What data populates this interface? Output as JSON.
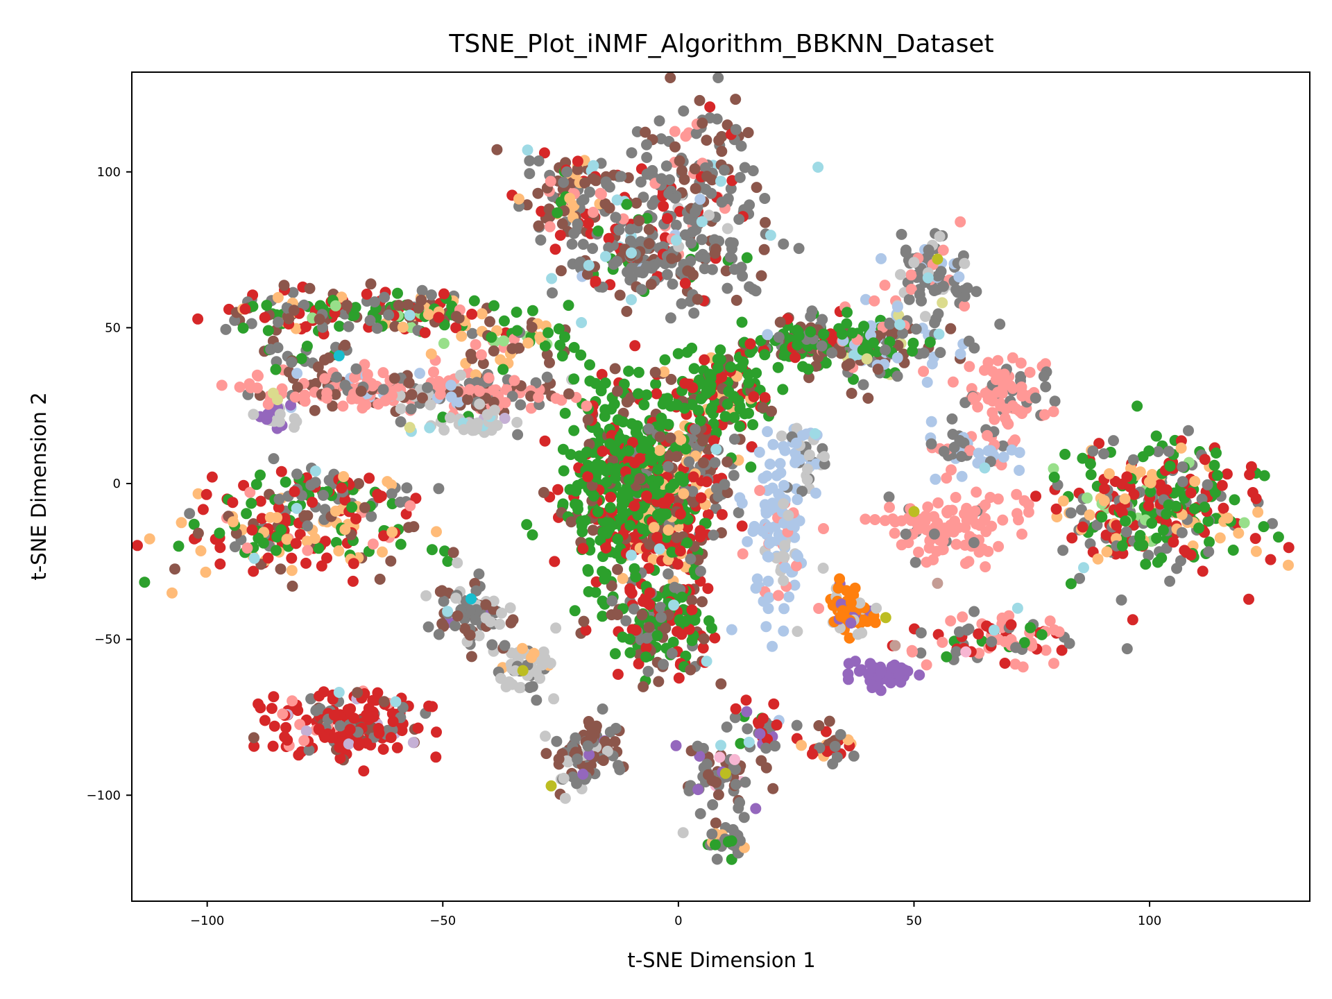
{
  "chart_data": {
    "type": "scatter",
    "title": "TSNE_Plot_iNMF_Algorithm_BBKNN_Dataset",
    "xlabel": "t-SNE Dimension 1",
    "ylabel": "t-SNE Dimension 2",
    "xlim": [
      -116,
      134
    ],
    "ylim": [
      -134,
      132
    ],
    "xticks": [
      {
        "value": -100,
        "label": "−100"
      },
      {
        "value": -50,
        "label": "−50"
      },
      {
        "value": 0,
        "label": "0"
      },
      {
        "value": 50,
        "label": "50"
      },
      {
        "value": 100,
        "label": "100"
      }
    ],
    "yticks": [
      {
        "value": -100,
        "label": "−100"
      },
      {
        "value": -50,
        "label": "−50"
      },
      {
        "value": 0,
        "label": "0"
      },
      {
        "value": 50,
        "label": "50"
      },
      {
        "value": 100,
        "label": "100"
      }
    ],
    "grid": false,
    "legend": "none",
    "colors": {
      "blue": "#1f77b4",
      "lightblue": "#aec7e8",
      "orange": "#ff7f0e",
      "lightorange": "#ffbb78",
      "green": "#2ca02c",
      "lightgreen": "#98df8a",
      "red": "#d62728",
      "pink": "#ff9896",
      "purple": "#9467bd",
      "lavender": "#c5b0d5",
      "brown": "#8c564b",
      "tan": "#c49c94",
      "magenta": "#e377c2",
      "lightmagenta": "#f7b6d2",
      "gray": "#7f7f7f",
      "lightgray": "#c7c7c7",
      "olive": "#bcbd22",
      "khaki": "#dbdb8d",
      "cyan": "#17becf",
      "lightcyan": "#9edae5"
    },
    "clusters": [
      {
        "cx": -21,
        "cy": 93,
        "sx": 7,
        "sy": 7,
        "n": 110,
        "mix": {
          "lightorange": 2,
          "red": 3,
          "brown": 4,
          "gray": 4,
          "pink": 2,
          "green": 1,
          "lightcyan": 0.3
        }
      },
      {
        "cx": 4,
        "cy": 95,
        "sx": 7,
        "sy": 13,
        "n": 150,
        "mix": {
          "gray": 7,
          "brown": 3,
          "red": 1,
          "pink": 1,
          "lightcyan": 0.4,
          "lightgray": 0.4
        }
      },
      {
        "cx": -6,
        "cy": 72,
        "sx": 10,
        "sy": 8,
        "n": 180,
        "mix": {
          "gray": 6,
          "brown": 3,
          "green": 1,
          "red": 1,
          "lightblue": 0.6,
          "lightcyan": 0.4
        }
      },
      {
        "cx": -80,
        "cy": 55,
        "sx": 9,
        "sy": 3.5,
        "n": 90,
        "mix": {
          "red": 3,
          "green": 3,
          "gray": 3,
          "brown": 3,
          "lightorange": 1.5
        }
      },
      {
        "cx": -55,
        "cy": 54,
        "sx": 10,
        "sy": 3.5,
        "n": 100,
        "mix": {
          "red": 2,
          "green": 3,
          "brown": 3,
          "lightorange": 2,
          "gray": 1,
          "lightgreen": 0.5
        }
      },
      {
        "cx": -35,
        "cy": 45,
        "sx": 7,
        "sy": 4,
        "n": 50,
        "mix": {
          "lightorange": 3,
          "green": 2,
          "brown": 2,
          "pink": 1,
          "lightgreen": 0.5
        }
      },
      {
        "cx": -65,
        "cy": 30,
        "sx": 13,
        "sy": 3.5,
        "n": 150,
        "mix": {
          "pink": 6,
          "brown": 2,
          "lightblue": 1,
          "gray": 1.5
        }
      },
      {
        "cx": -40,
        "cy": 29,
        "sx": 10,
        "sy": 3,
        "n": 100,
        "mix": {
          "pink": 6,
          "brown": 2,
          "gray": 1.5,
          "lightgray": 1,
          "lightblue": 1
        }
      },
      {
        "cx": -44,
        "cy": 19,
        "sx": 6,
        "sy": 1.5,
        "n": 40,
        "mix": {
          "lightgray": 4,
          "gray": 1,
          "lavender": 1,
          "green": 0.5,
          "lightcyan": 0.5
        }
      },
      {
        "cx": -85,
        "cy": 22,
        "sx": 2,
        "sy": 3,
        "n": 20,
        "mix": {
          "purple": 2,
          "lightgray": 3,
          "khaki": 0.5
        }
      },
      {
        "cx": -80,
        "cy": 42,
        "sx": 5,
        "sy": 3,
        "n": 25,
        "mix": {
          "gray": 3,
          "brown": 2,
          "green": 1
        }
      },
      {
        "cx": -80,
        "cy": -15,
        "sx": 13,
        "sy": 8,
        "n": 180,
        "mix": {
          "red": 4,
          "green": 3,
          "lightorange": 3,
          "brown": 2,
          "gray": 1,
          "pink": 1
        }
      },
      {
        "cx": -71,
        "cy": -3,
        "sx": 9,
        "sy": 4,
        "n": 60,
        "mix": {
          "gray": 3,
          "red": 2,
          "green": 2,
          "lightorange": 1
        }
      },
      {
        "cx": -12,
        "cy": 2,
        "sx": 7,
        "sy": 17,
        "n": 460,
        "mix": {
          "green": 8,
          "red": 3,
          "brown": 1
        }
      },
      {
        "cx": -3,
        "cy": -11,
        "sx": 5,
        "sy": 11,
        "n": 140,
        "mix": {
          "red": 4,
          "brown": 3,
          "lightorange": 2,
          "green": 1,
          "gray": 1
        }
      },
      {
        "cx": -4,
        "cy": -45,
        "sx": 6,
        "sy": 9,
        "n": 160,
        "mix": {
          "green": 5,
          "red": 3,
          "gray": 3,
          "brown": 2
        }
      },
      {
        "cx": 9,
        "cy": 30,
        "sx": 5,
        "sy": 7,
        "n": 150,
        "mix": {
          "green": 7,
          "red": 2,
          "brown": 2,
          "lightorange": 1
        }
      },
      {
        "cx": 3,
        "cy": 5,
        "sx": 5,
        "sy": 9,
        "n": 110,
        "mix": {
          "brown": 4,
          "gray": 3,
          "red": 2,
          "lightorange": 2
        }
      },
      {
        "cx": 28,
        "cy": 45,
        "sx": 10,
        "sy": 4,
        "n": 130,
        "mix": {
          "green": 6,
          "brown": 3,
          "gray": 2,
          "red": 1
        }
      },
      {
        "cx": 43,
        "cy": 43,
        "sx": 9,
        "sy": 6,
        "n": 120,
        "mix": {
          "gray": 6,
          "brown": 2,
          "lightblue": 2,
          "green": 1,
          "pink": 1,
          "lightcyan": 0.3,
          "khaki": 0.3
        }
      },
      {
        "cx": 54,
        "cy": 67,
        "sx": 4,
        "sy": 7,
        "n": 80,
        "mix": {
          "gray": 6,
          "lightgray": 2,
          "pink": 1,
          "lightblue": 1,
          "khaki": 0.5
        }
      },
      {
        "cx": 21,
        "cy": -18,
        "sx": 3,
        "sy": 14,
        "n": 110,
        "mix": {
          "lightblue": 7,
          "pink": 2,
          "lightgray": 1
        }
      },
      {
        "cx": 27,
        "cy": 10,
        "sx": 3,
        "sy": 6,
        "n": 40,
        "mix": {
          "lightblue": 4,
          "gray": 2,
          "lightgray": 1
        }
      },
      {
        "cx": 63,
        "cy": 10,
        "sx": 5,
        "sy": 4,
        "n": 50,
        "mix": {
          "lightblue": 3,
          "gray": 3,
          "pink": 2
        }
      },
      {
        "cx": 70,
        "cy": 28,
        "sx": 5,
        "sy": 6,
        "n": 80,
        "mix": {
          "pink": 6,
          "gray": 2
        }
      },
      {
        "cx": 57,
        "cy": -14,
        "sx": 7,
        "sy": 5,
        "n": 110,
        "mix": {
          "pink": 8,
          "gray": 1
        }
      },
      {
        "cx": 102,
        "cy": -8,
        "sx": 11,
        "sy": 10,
        "n": 320,
        "mix": {
          "green": 4,
          "red": 4,
          "gray": 3,
          "lightorange": 2,
          "lightgreen": 0.5
        }
      },
      {
        "cx": 36,
        "cy": -41,
        "sx": 2.5,
        "sy": 4,
        "n": 60,
        "mix": {
          "orange": 5,
          "purple": 2,
          "lightgray": 2
        }
      },
      {
        "cx": 43,
        "cy": -61,
        "sx": 3,
        "sy": 2,
        "n": 50,
        "mix": {
          "purple": 9
        }
      },
      {
        "cx": 68,
        "cy": -50,
        "sx": 9,
        "sy": 4,
        "n": 80,
        "mix": {
          "red": 3,
          "pink": 4,
          "gray": 2,
          "green": 1
        }
      },
      {
        "cx": -70,
        "cy": -77,
        "sx": 8,
        "sy": 5,
        "n": 180,
        "mix": {
          "red": 8,
          "gray": 2,
          "brown": 1,
          "pink": 1,
          "lavender": 0.3
        }
      },
      {
        "cx": -44,
        "cy": -42,
        "sx": 5,
        "sy": 6,
        "n": 70,
        "mix": {
          "brown": 3,
          "gray": 4,
          "lightgray": 2,
          "purple": 0.5
        }
      },
      {
        "cx": -33,
        "cy": -58,
        "sx": 3,
        "sy": 5,
        "n": 50,
        "mix": {
          "lightgray": 4,
          "gray": 2,
          "lightorange": 1
        }
      },
      {
        "cx": -20,
        "cy": -87,
        "sx": 4,
        "sy": 5,
        "n": 80,
        "mix": {
          "gray": 5,
          "brown": 4,
          "purple": 0.5,
          "lightgray": 1
        }
      },
      {
        "cx": 8,
        "cy": -95,
        "sx": 5,
        "sy": 6,
        "n": 60,
        "mix": {
          "gray": 4,
          "brown": 3,
          "purple": 1,
          "lightmagenta": 1
        }
      },
      {
        "cx": 11,
        "cy": -115,
        "sx": 2.5,
        "sy": 3,
        "n": 30,
        "mix": {
          "gray": 6,
          "green": 1,
          "lightorange": 1
        }
      },
      {
        "cx": 18,
        "cy": -78,
        "sx": 3,
        "sy": 4,
        "n": 30,
        "mix": {
          "red": 3,
          "gray": 2,
          "purple": 1,
          "green": 1
        }
      },
      {
        "cx": 33,
        "cy": -84,
        "sx": 3,
        "sy": 3,
        "n": 30,
        "mix": {
          "gray": 3,
          "brown": 2,
          "lightorange": 2,
          "red": 1
        }
      }
    ],
    "highlights": [
      {
        "x": -32,
        "y": 107,
        "color": "lightcyan"
      },
      {
        "x": -13,
        "y": 91,
        "color": "lightcyan"
      },
      {
        "x": 5,
        "y": 84,
        "color": "lightcyan"
      },
      {
        "x": 9,
        "y": 97,
        "color": "lightcyan"
      },
      {
        "x": -10,
        "y": 74,
        "color": "lightcyan"
      },
      {
        "x": -19,
        "y": 70,
        "color": "lightcyan"
      },
      {
        "x": -10,
        "y": 59,
        "color": "lightcyan"
      },
      {
        "x": -57,
        "y": 54,
        "color": "lightcyan"
      },
      {
        "x": -72,
        "y": 41,
        "color": "cyan"
      },
      {
        "x": -86,
        "y": 29,
        "color": "khaki"
      },
      {
        "x": -57,
        "y": 18,
        "color": "khaki"
      },
      {
        "x": -81,
        "y": -8,
        "color": "lightcyan"
      },
      {
        "x": -90,
        "y": -24,
        "color": "lightcyan"
      },
      {
        "x": -77,
        "y": 4,
        "color": "lightcyan"
      },
      {
        "x": -44,
        "y": -37,
        "color": "cyan"
      },
      {
        "x": -49,
        "y": -41,
        "color": "lightcyan"
      },
      {
        "x": -33,
        "y": -60,
        "color": "olive"
      },
      {
        "x": -27,
        "y": -97,
        "color": "olive"
      },
      {
        "x": -24,
        "y": -101,
        "color": "lightgray"
      },
      {
        "x": -72,
        "y": -67,
        "color": "lightcyan"
      },
      {
        "x": -60,
        "y": -70,
        "color": "lightcyan"
      },
      {
        "x": -10,
        "y": -23,
        "color": "lightcyan"
      },
      {
        "x": -4,
        "y": -21,
        "color": "lightcyan"
      },
      {
        "x": -1,
        "y": -39,
        "color": "lightcyan"
      },
      {
        "x": 6,
        "y": -57,
        "color": "lightcyan"
      },
      {
        "x": 8,
        "y": 11,
        "color": "lightcyan"
      },
      {
        "x": 10,
        "y": -93,
        "color": "olive"
      },
      {
        "x": 9,
        "y": -84,
        "color": "lightcyan"
      },
      {
        "x": 15,
        "y": -83,
        "color": "lightcyan"
      },
      {
        "x": 1,
        "y": -112,
        "color": "lightgray"
      },
      {
        "x": 29,
        "y": 16,
        "color": "lightcyan"
      },
      {
        "x": 40,
        "y": 40,
        "color": "khaki"
      },
      {
        "x": 47,
        "y": 51,
        "color": "lightcyan"
      },
      {
        "x": 55,
        "y": 72,
        "color": "olive"
      },
      {
        "x": 53,
        "y": 66,
        "color": "lightcyan"
      },
      {
        "x": 56,
        "y": 58,
        "color": "khaki"
      },
      {
        "x": 50,
        "y": -9,
        "color": "olive"
      },
      {
        "x": 65,
        "y": 5,
        "color": "lightcyan"
      },
      {
        "x": 44,
        "y": -43,
        "color": "olive"
      },
      {
        "x": 42,
        "y": -40,
        "color": "lightgray"
      },
      {
        "x": 67,
        "y": -47,
        "color": "lightcyan"
      },
      {
        "x": 72,
        "y": -40,
        "color": "lightcyan"
      },
      {
        "x": 86,
        "y": -27,
        "color": "lightcyan"
      },
      {
        "x": 55,
        "y": -32,
        "color": "tan"
      },
      {
        "x": 46,
        "y": -52,
        "color": "tan"
      },
      {
        "x": 61,
        "y": -54,
        "color": "lightmagenta"
      }
    ]
  }
}
